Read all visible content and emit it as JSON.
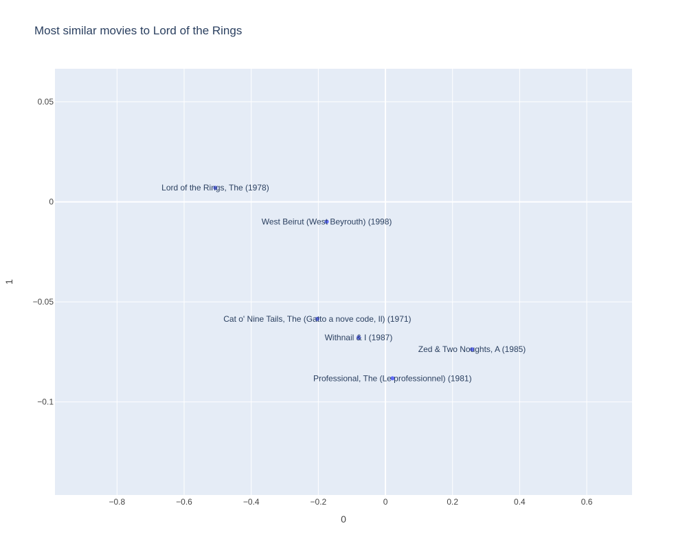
{
  "chart_data": {
    "type": "scatter",
    "title": "Most similar movies to Lord of the Rings",
    "xlabel": "0",
    "ylabel": "1",
    "xlim": [
      -0.985,
      0.735
    ],
    "ylim": [
      -0.1465,
      0.0665
    ],
    "grid": true,
    "x_ticks": [
      -0.8,
      -0.6,
      -0.4,
      -0.2,
      0,
      0.2,
      0.4,
      0.6
    ],
    "x_tick_labels": [
      "−0.8",
      "−0.6",
      "−0.4",
      "−0.2",
      "0",
      "0.2",
      "0.4",
      "0.6"
    ],
    "y_ticks": [
      0.05,
      0,
      -0.05,
      -0.1
    ],
    "y_tick_labels": [
      "0.05",
      "0",
      "−0.05",
      "−0.1"
    ],
    "marker_color": "#636efa",
    "points": [
      {
        "x": -0.507,
        "y": 0.007,
        "label": "Lord of the Rings, The (1978)"
      },
      {
        "x": -0.175,
        "y": -0.0099,
        "label": "West Beirut (West Beyrouth) (1998)"
      },
      {
        "x": -0.203,
        "y": -0.0585,
        "label": "Cat o' Nine Tails, The (Gatto a nove code, Il) (1971)"
      },
      {
        "x": -0.08,
        "y": -0.0678,
        "label": "Withnail & I (1987)"
      },
      {
        "x": 0.258,
        "y": -0.0737,
        "label": "Zed & Two Noughts, A (1985)"
      },
      {
        "x": 0.021,
        "y": -0.0882,
        "label": "Professional, The (Le professionnel) (1981)"
      }
    ]
  }
}
